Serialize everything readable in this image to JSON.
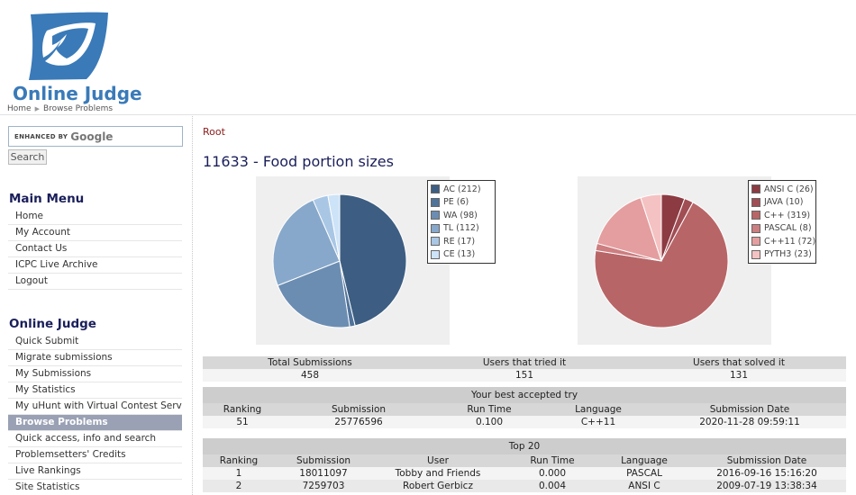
{
  "header": {
    "logo_text": "Online Judge",
    "breadcrumb": [
      "Home",
      "Browse Problems"
    ]
  },
  "sidebar": {
    "search": {
      "prefix": "ENHANCED BY",
      "brand": "Google",
      "button": "Search"
    },
    "main_menu": {
      "title": "Main Menu",
      "items": [
        "Home",
        "My Account",
        "Contact Us",
        "ICPC Live Archive",
        "Logout"
      ]
    },
    "online_judge": {
      "title": "Online Judge",
      "items": [
        "Quick Submit",
        "Migrate submissions",
        "My Submissions",
        "My Statistics",
        "My uHunt with Virtual Contest Service",
        "Browse Problems",
        "Quick access, info and search",
        "Problemsetters' Credits",
        "Live Rankings",
        "Site Statistics"
      ],
      "active": "Browse Problems"
    }
  },
  "main": {
    "root_link": "Root",
    "problem_title": "11633 - Food portion sizes"
  },
  "chart_data": [
    {
      "type": "pie",
      "categories": [
        "AC",
        "PE",
        "WA",
        "TL",
        "RE",
        "CE"
      ],
      "values": [
        212,
        6,
        98,
        112,
        17,
        13
      ],
      "legend_labels": [
        "AC (212)",
        "PE (6)",
        "WA (98)",
        "TL (112)",
        "RE (17)",
        "CE (13)"
      ],
      "colors": [
        "#3d5e82",
        "#50739a",
        "#6c8db2",
        "#87a8ca",
        "#a9c7e5",
        "#cde3f8"
      ],
      "legend": "right"
    },
    {
      "type": "pie",
      "categories": [
        "ANSI C",
        "JAVA",
        "C++",
        "PASCAL",
        "C++11",
        "PYTH3"
      ],
      "values": [
        26,
        10,
        319,
        8,
        72,
        23
      ],
      "legend_labels": [
        "ANSI C (26)",
        "JAVA (10)",
        "C++ (319)",
        "PASCAL (8)",
        "C++11 (72)",
        "PYTH3 (23)"
      ],
      "colors": [
        "#8c3b42",
        "#a04d54",
        "#b86567",
        "#cc7e80",
        "#e49e9f",
        "#f4c2c2"
      ],
      "legend": "right"
    }
  ],
  "summary": {
    "headers": [
      "Total Submissions",
      "Users that tried it",
      "Users that solved it"
    ],
    "values": [
      "458",
      "151",
      "131"
    ]
  },
  "best_try": {
    "caption": "Your best accepted try",
    "headers": [
      "Ranking",
      "Submission",
      "Run Time",
      "Language",
      "Submission Date"
    ],
    "row": [
      "51",
      "25776596",
      "0.100",
      "C++11",
      "2020-11-28 09:59:11"
    ]
  },
  "top20": {
    "caption": "Top 20",
    "headers": [
      "Ranking",
      "Submission",
      "User",
      "Run Time",
      "Language",
      "Submission Date"
    ],
    "rows": [
      [
        "1",
        "18011097",
        "Tobby and Friends",
        "0.000",
        "PASCAL",
        "2016-09-16 15:16:20"
      ],
      [
        "2",
        "7259703",
        "Robert Gerbicz",
        "0.004",
        "ANSI C",
        "2009-07-19 13:38:34"
      ]
    ]
  }
}
